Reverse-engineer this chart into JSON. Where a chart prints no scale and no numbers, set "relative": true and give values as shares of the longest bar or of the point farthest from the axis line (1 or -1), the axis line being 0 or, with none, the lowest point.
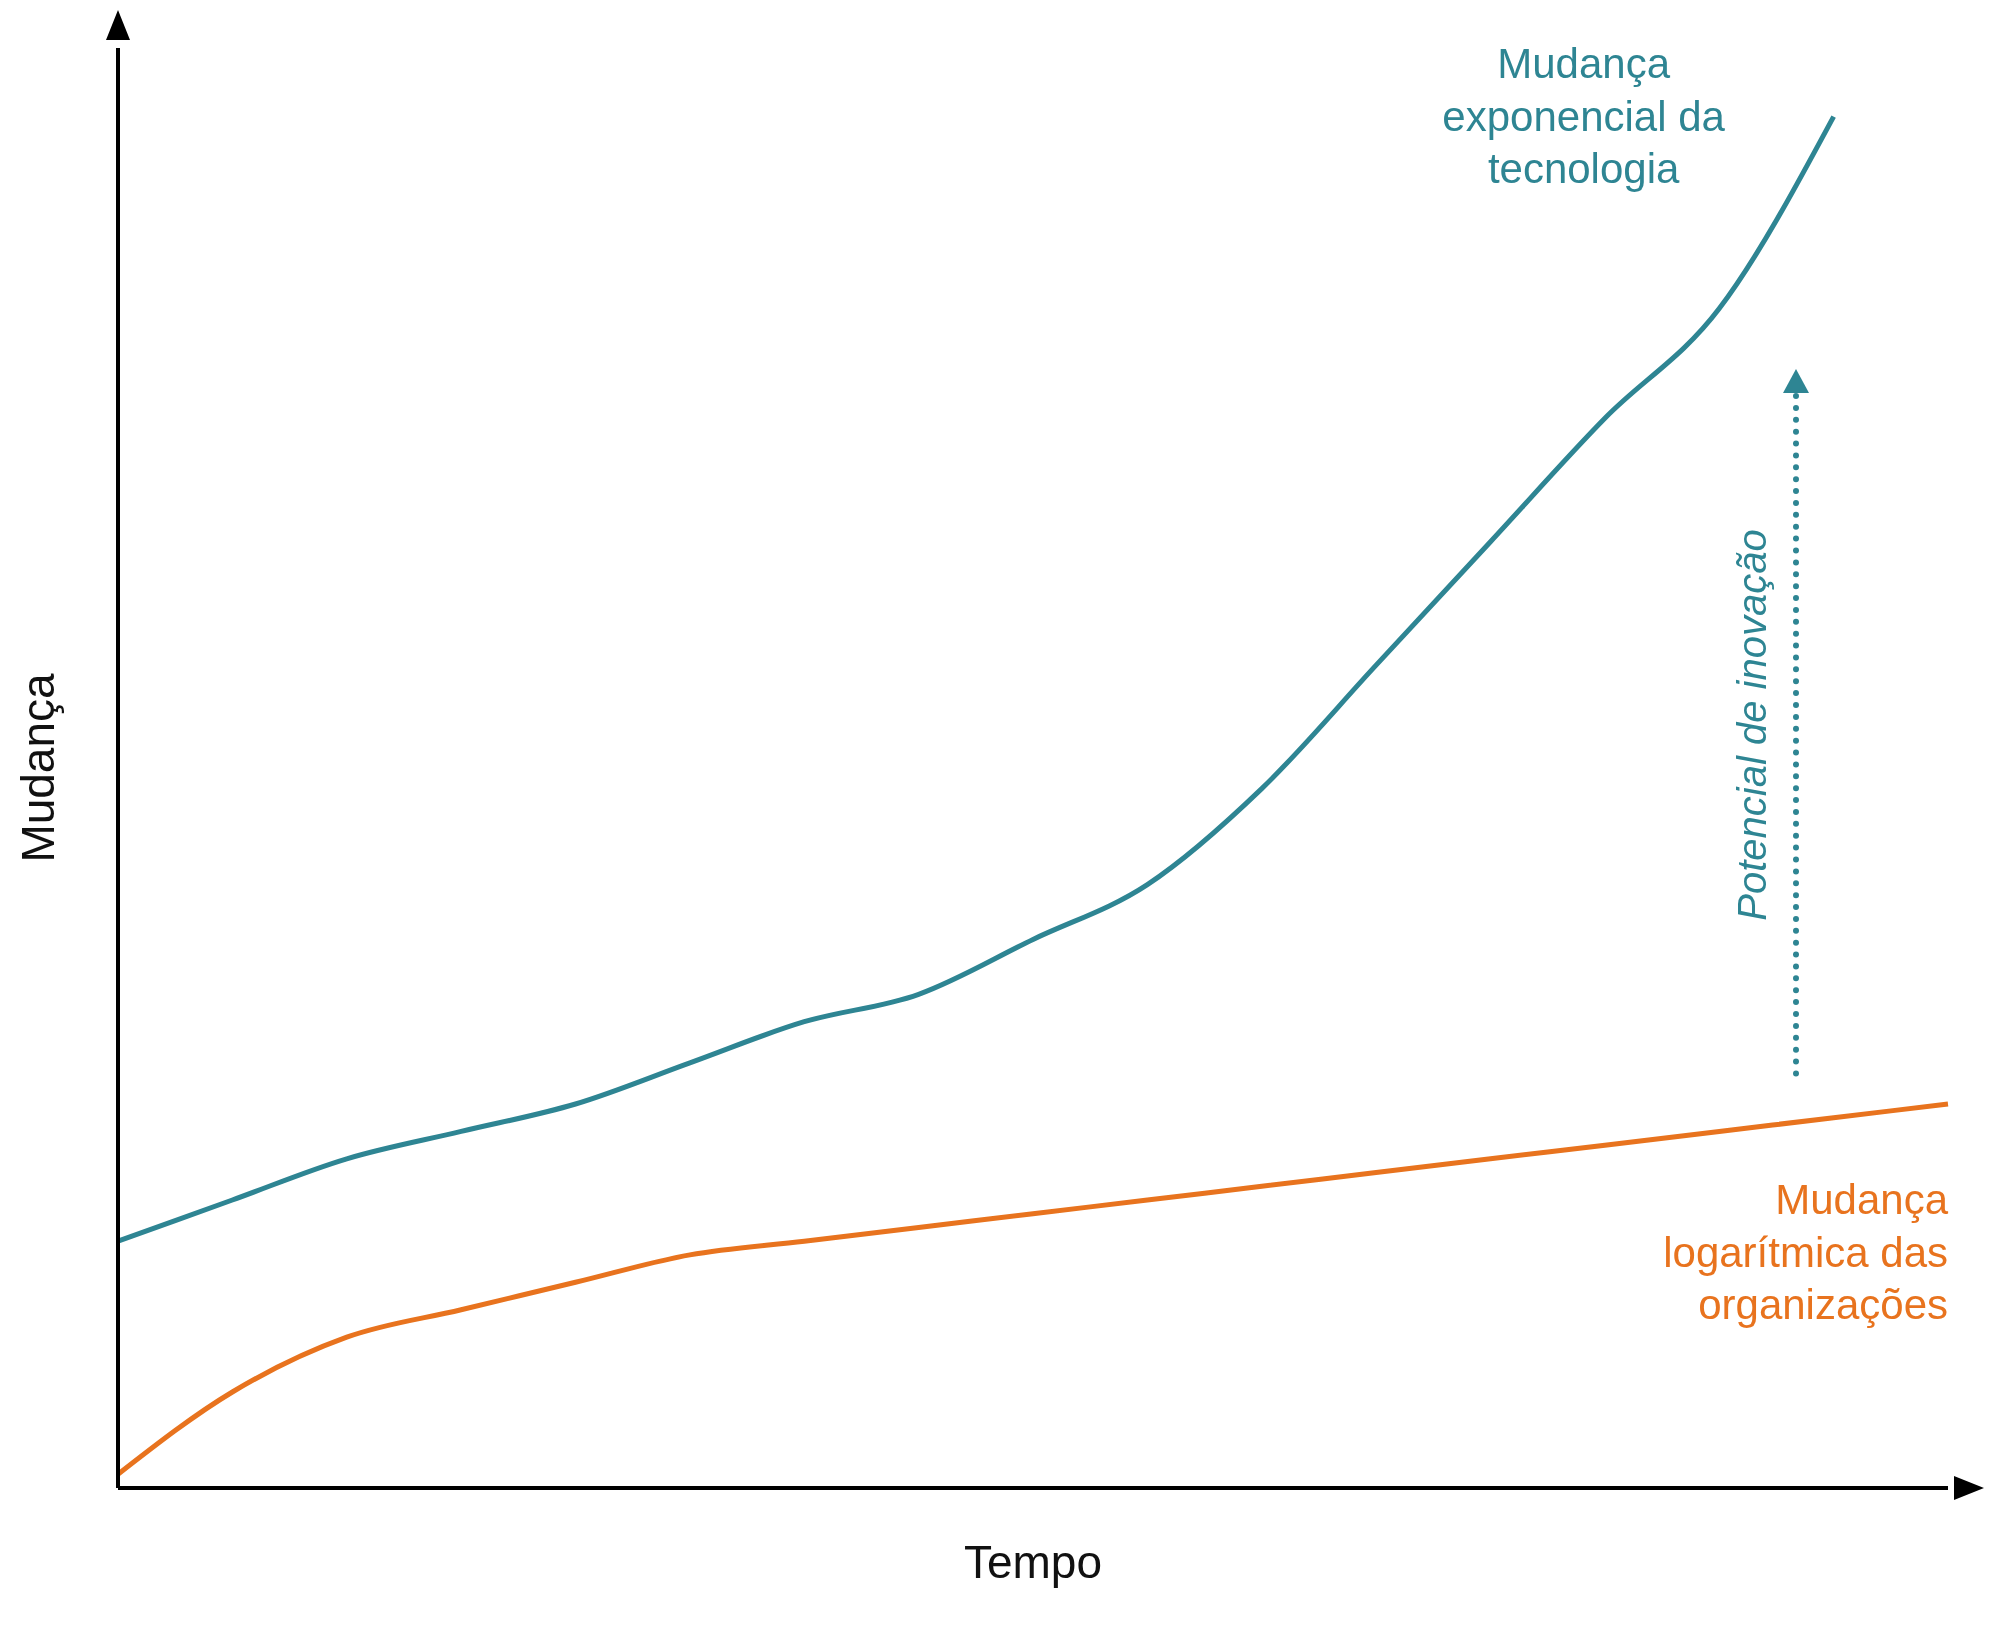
{
  "chart_data": {
    "type": "line",
    "relative": true,
    "xlabel": "Tempo",
    "ylabel": "Mudança",
    "categories": [
      null,
      null,
      null,
      null,
      null,
      null,
      null,
      null,
      null,
      null,
      null,
      null,
      null,
      null,
      null,
      null,
      null
    ],
    "series": [
      {
        "name": "Mudança exponencial da tecnologia",
        "color": "#2e8593",
        "values": [
          0.18,
          0.21,
          0.24,
          0.26,
          0.28,
          0.31,
          0.34,
          0.36,
          0.4,
          0.44,
          0.51,
          0.6,
          0.69,
          0.78,
          0.86,
          1,
          null
        ]
      },
      {
        "name": "Mudança logarítmica das organizações",
        "color": "#e8731e",
        "values": [
          0.01,
          0.07,
          0.11,
          0.13,
          0.15,
          0.17,
          0.18,
          0.19,
          0.2,
          0.21,
          0.22,
          0.23,
          0.24,
          0.25,
          0.26,
          0.27,
          0.28
        ]
      }
    ],
    "annotations": [
      "Potencial de inovação"
    ],
    "legend": false,
    "grid": false,
    "marker": "none",
    "line_style": "solid"
  }
}
